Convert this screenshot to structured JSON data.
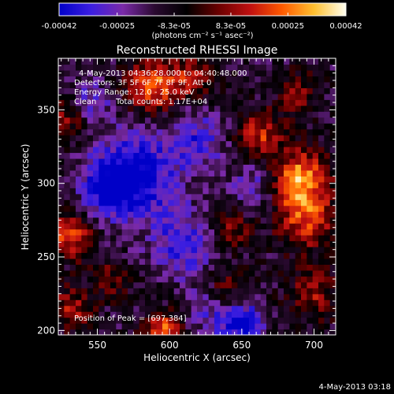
{
  "colorbar": {
    "ticks": [
      "-0.00042",
      "-0.00025",
      "-8.3e-05",
      "8.3e-05",
      "0.00025",
      "0.00042"
    ],
    "units": "(photons cm⁻² s⁻¹ asec⁻²)",
    "stops": [
      "#0000c8",
      "#3c1ee0",
      "#7a2aa8",
      "#2a0a30",
      "#000000",
      "#6a0000",
      "#c01010",
      "#ff5a00",
      "#ffc030",
      "#fffff0"
    ]
  },
  "title": "Reconstructed RHESSI Image",
  "info": {
    "line1": "4-May-2013 04:36:28.000 to 04:40:48.000",
    "line2": "Detectors: 3F 5F 6F 7F 8F 9F, Att 0",
    "line3": "Energy Range: 12.0 - 25.0 keV",
    "line4a": "Clean",
    "line4b": "Total counts: 1.17E+04"
  },
  "peak_label": "Position of Peak = [697,384]",
  "footer_date": "4-May-2013 03:18",
  "chart_data": {
    "type": "heatmap",
    "title": "Reconstructed RHESSI Image",
    "xlabel": "Heliocentric X (arcsec)",
    "ylabel": "Heliocentric Y (arcsec)",
    "xlim": [
      523,
      715
    ],
    "ylim": [
      197,
      385
    ],
    "xticks": [
      550,
      600,
      650,
      700
    ],
    "yticks": [
      200,
      250,
      300,
      350
    ],
    "color_range": [
      -0.00042,
      0.00042
    ],
    "grid_step_arcsec": 4,
    "peak": [
      697,
      384
    ],
    "blobs": [
      {
        "x": 690,
        "y": 303,
        "amp": 0.0004,
        "sigma": 14
      },
      {
        "x": 695,
        "y": 275,
        "amp": 0.00028,
        "sigma": 14
      },
      {
        "x": 588,
        "y": 366,
        "amp": 0.00036,
        "sigma": 12
      },
      {
        "x": 616,
        "y": 372,
        "amp": 0.00024,
        "sigma": 10
      },
      {
        "x": 531,
        "y": 265,
        "amp": 0.0003,
        "sigma": 11
      },
      {
        "x": 529,
        "y": 345,
        "amp": 0.00022,
        "sigma": 10
      },
      {
        "x": 532,
        "y": 215,
        "amp": 0.00024,
        "sigma": 10
      },
      {
        "x": 596,
        "y": 201,
        "amp": 0.00032,
        "sigma": 9
      },
      {
        "x": 662,
        "y": 333,
        "amp": 0.00026,
        "sigma": 12
      },
      {
        "x": 642,
        "y": 268,
        "amp": 0.0002,
        "sigma": 10
      },
      {
        "x": 638,
        "y": 228,
        "amp": 0.00018,
        "sigma": 10
      },
      {
        "x": 700,
        "y": 225,
        "amp": 0.0002,
        "sigma": 12
      },
      {
        "x": 560,
        "y": 235,
        "amp": 0.00016,
        "sigma": 9
      },
      {
        "x": 690,
        "y": 362,
        "amp": 0.0002,
        "sigma": 9
      },
      {
        "x": 575,
        "y": 305,
        "amp": -0.00036,
        "sigma": 20
      },
      {
        "x": 610,
        "y": 260,
        "amp": -0.00022,
        "sigma": 16
      },
      {
        "x": 650,
        "y": 205,
        "amp": -0.00032,
        "sigma": 10
      },
      {
        "x": 545,
        "y": 355,
        "amp": -0.0002,
        "sigma": 10
      },
      {
        "x": 620,
        "y": 330,
        "amp": -0.0002,
        "sigma": 14
      },
      {
        "x": 660,
        "y": 300,
        "amp": -0.00016,
        "sigma": 12
      },
      {
        "x": 628,
        "y": 215,
        "amp": -0.00016,
        "sigma": 12
      },
      {
        "x": 556,
        "y": 296,
        "amp": -0.00018,
        "sigma": 12
      }
    ]
  }
}
